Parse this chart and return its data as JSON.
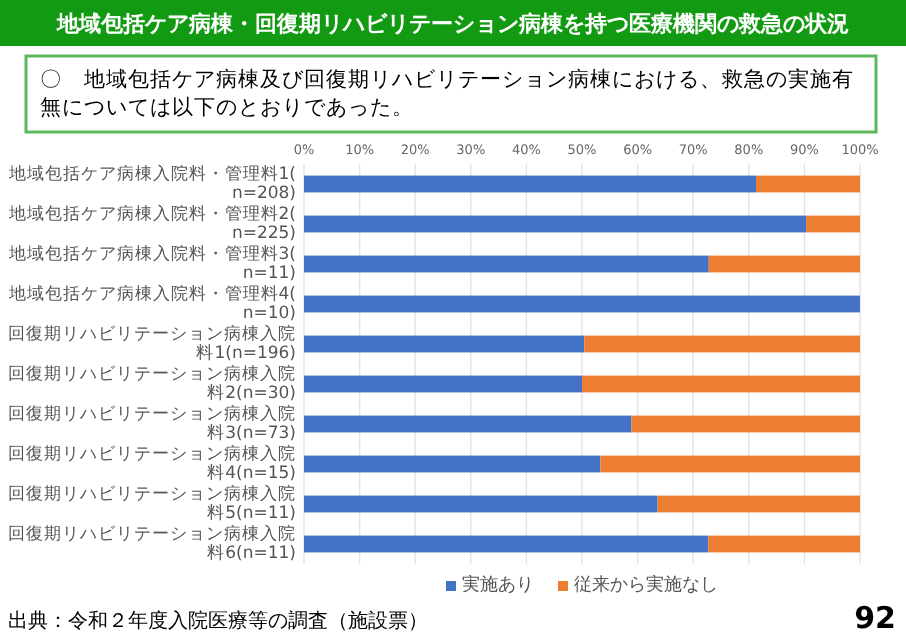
{
  "chart_data": {
    "type": "bar",
    "orientation": "horizontal",
    "stacked": true,
    "title": "地域包括ケア病棟・回復期リハビリテーション病棟を持つ医療機関の救急の状況",
    "subtitle": "〇　地域包括ケア病棟及び回復期リハビリテーション病棟における、救急の実施有無については以下のとおりであった。",
    "categories": [
      "地域包括ケア病棟入院料・管理料1(n=208)",
      "地域包括ケア病棟入院料・管理料2(n=225)",
      "地域包括ケア病棟入院料・管理料3(n=11)",
      "地域包括ケア病棟入院料・管理料4(n=10)",
      "回復期リハビリテーション病棟入院料1(n=196)",
      "回復期リハビリテーション病棟入院料2(n=30)",
      "回復期リハビリテーション病棟入院料3(n=73)",
      "回復期リハビリテーション病棟入院料4(n=15)",
      "回復期リハビリテーション病棟入院料5(n=11)",
      "回復期リハビリテーション病棟入院料6(n=11)"
    ],
    "series": [
      {
        "name": "実施あり",
        "color": "#4472c4",
        "values": [
          81.3,
          90.3,
          72.8,
          100,
          50.4,
          50.0,
          58.9,
          53.3,
          63.6,
          72.7
        ]
      },
      {
        "name": "従来から実施なし",
        "color": "#ed7d31",
        "values": [
          18.7,
          9.7,
          27.2,
          0,
          49.6,
          50.0,
          41.1,
          46.7,
          36.4,
          27.3
        ]
      }
    ],
    "xlim": [
      0,
      100
    ],
    "xticks": [
      {
        "value": 0,
        "label": "0%"
      },
      {
        "value": 10,
        "label": "10%"
      },
      {
        "value": 20,
        "label": "20%"
      },
      {
        "value": 30,
        "label": "30%"
      },
      {
        "value": 40,
        "label": "40%"
      },
      {
        "value": 50,
        "label": "50%"
      },
      {
        "value": 60,
        "label": "60%"
      },
      {
        "value": 70,
        "label": "70%"
      },
      {
        "value": 80,
        "label": "80%"
      },
      {
        "value": 90,
        "label": "90%"
      },
      {
        "value": 100,
        "label": "100%"
      }
    ],
    "grid": "x",
    "legend": "bottom",
    "annotations": [
      "出典：令和２年度入院医療等の調査（施設票）",
      "92"
    ]
  }
}
